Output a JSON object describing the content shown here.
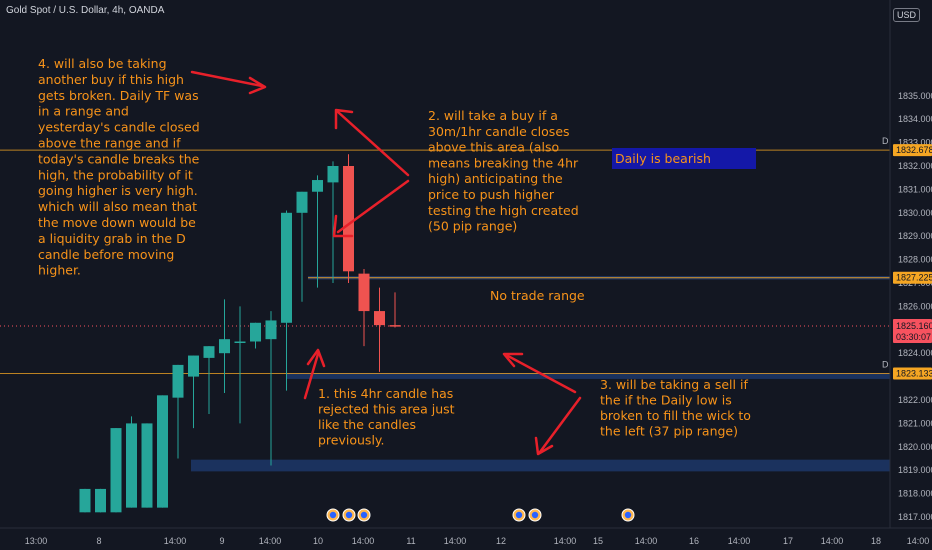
{
  "header": {
    "symbol_title": "Gold Spot / U.S. Dollar, 4h, OANDA",
    "currency_button": "USD"
  },
  "chart_data": {
    "type": "candlestick",
    "price_ticks": [
      "1835.000",
      "1834.000",
      "1833.000",
      "1832.000",
      "1831.000",
      "1830.000",
      "1829.000",
      "1828.000",
      "1827.000",
      "1826.000",
      "1825.000",
      "1824.000",
      "1823.000",
      "1822.000",
      "1821.000",
      "1820.000",
      "1819.000",
      "1818.000",
      "1817.000"
    ],
    "time_ticks": [
      {
        "label": "13:00",
        "px": 0
      },
      {
        "label": "8",
        "px": 0
      },
      {
        "label": "14:00",
        "px": 0
      },
      {
        "label": "9",
        "px": 0
      },
      {
        "label": "14:00",
        "px": 0
      },
      {
        "label": "10",
        "px": 0
      },
      {
        "label": "14:00",
        "px": 0
      },
      {
        "label": "11",
        "px": 0
      },
      {
        "label": "14:00",
        "px": 0
      },
      {
        "label": "12",
        "px": 0
      },
      {
        "label": "14:00",
        "px": 0
      },
      {
        "label": "15",
        "px": 0
      },
      {
        "label": "14:00",
        "px": 0
      },
      {
        "label": "16",
        "px": 0
      },
      {
        "label": "14:00",
        "px": 0
      },
      {
        "label": "17",
        "px": 0
      },
      {
        "label": "14:00",
        "px": 0
      },
      {
        "label": "18",
        "px": 0
      },
      {
        "label": "14:00",
        "px": 0
      }
    ],
    "candles": [
      {
        "o": 1817.2,
        "h": 1818.2,
        "l": 1817.2,
        "c": 1818.2
      },
      {
        "o": 1817.2,
        "h": 1818.2,
        "l": 1817.2,
        "c": 1818.2
      },
      {
        "o": 1817.2,
        "h": 1820.8,
        "l": 1817.2,
        "c": 1820.8
      },
      {
        "o": 1817.4,
        "h": 1821.3,
        "l": 1817.4,
        "c": 1821.0
      },
      {
        "o": 1817.4,
        "h": 1821.0,
        "l": 1817.4,
        "c": 1821.0
      },
      {
        "o": 1817.4,
        "h": 1822.2,
        "l": 1817.4,
        "c": 1822.2
      },
      {
        "o": 1822.1,
        "h": 1823.5,
        "l": 1819.5,
        "c": 1823.5
      },
      {
        "o": 1823.0,
        "h": 1823.9,
        "l": 1820.8,
        "c": 1823.9
      },
      {
        "o": 1823.8,
        "h": 1824.3,
        "l": 1821.4,
        "c": 1824.3
      },
      {
        "o": 1824.0,
        "h": 1826.3,
        "l": 1822.3,
        "c": 1824.6
      },
      {
        "o": 1824.5,
        "h": 1826.0,
        "l": 1821.0,
        "c": 1824.5
      },
      {
        "o": 1824.5,
        "h": 1825.3,
        "l": 1824.2,
        "c": 1825.3
      },
      {
        "o": 1824.6,
        "h": 1825.8,
        "l": 1819.2,
        "c": 1825.4
      },
      {
        "o": 1825.3,
        "h": 1830.1,
        "l": 1822.4,
        "c": 1830.0
      },
      {
        "o": 1830.0,
        "h": 1830.9,
        "l": 1826.2,
        "c": 1830.9
      },
      {
        "o": 1830.9,
        "h": 1831.6,
        "l": 1826.8,
        "c": 1831.4
      },
      {
        "o": 1831.3,
        "h": 1832.2,
        "l": 1827.0,
        "c": 1832.0
      },
      {
        "o": 1832.0,
        "h": 1832.5,
        "l": 1827.0,
        "c": 1827.5
      },
      {
        "o": 1827.4,
        "h": 1827.6,
        "l": 1824.3,
        "c": 1825.8
      },
      {
        "o": 1825.8,
        "h": 1826.8,
        "l": 1823.2,
        "c": 1825.2
      },
      {
        "o": 1825.2,
        "h": 1826.6,
        "l": 1825.1,
        "c": 1825.16
      }
    ],
    "price_tags": [
      {
        "label": "1832.678",
        "value": 1832.678,
        "color": "#f5a623",
        "marker": "D"
      },
      {
        "label": "1827.225",
        "value": 1827.225,
        "color": "#f5a623",
        "marker": ""
      },
      {
        "label": "1823.133",
        "value": 1823.133,
        "color": "#f5a623",
        "marker": "D"
      }
    ],
    "current_price": {
      "label": "1825.160",
      "countdown": "03:30:07",
      "value": 1825.16,
      "color": "#f7525f"
    },
    "zones": [
      {
        "name": "upper-range-line",
        "from": 1827.15,
        "to": 1827.3
      },
      {
        "name": "lower-range-band",
        "from": 1822.9,
        "to": 1823.15
      },
      {
        "name": "daily-low-zone",
        "from": 1818.95,
        "to": 1819.45
      }
    ],
    "annotations": {
      "note4": [
        "4. will also be taking",
        "another buy if this high",
        "gets broken. Daily TF was",
        "in a range and",
        "yesterday's candle closed",
        "above the range and if",
        "today's candle breaks the",
        "high, the probability of it",
        "going higher is very high.",
        "which will also mean that",
        "the move down would be",
        "a liquidity grab in the D",
        "candle before moving",
        "higher."
      ],
      "note2": [
        "2. will take a buy if a",
        "30m/1hr candle closes",
        "above this area (also",
        "means breaking the 4hr",
        "high) anticipating the",
        "price to push higher",
        "testing the high created",
        "(50 pip range)"
      ],
      "note1": [
        "1. this 4hr candle has",
        "rejected this area just",
        "like the candles",
        "previously."
      ],
      "note3": [
        "3. will be taking a sell if",
        "the if the Daily low is",
        "broken to fill the wick to",
        "the left (37 pip range)"
      ],
      "daily_label": "Daily is bearish",
      "no_trade": "No trade range"
    },
    "colors": {
      "bull": "#26a69a",
      "bear": "#ef5350",
      "annotation": "#f7931a",
      "arrow": "#e8202a",
      "zone": "#1e3a6e",
      "daily_box": "#1418a8"
    }
  }
}
